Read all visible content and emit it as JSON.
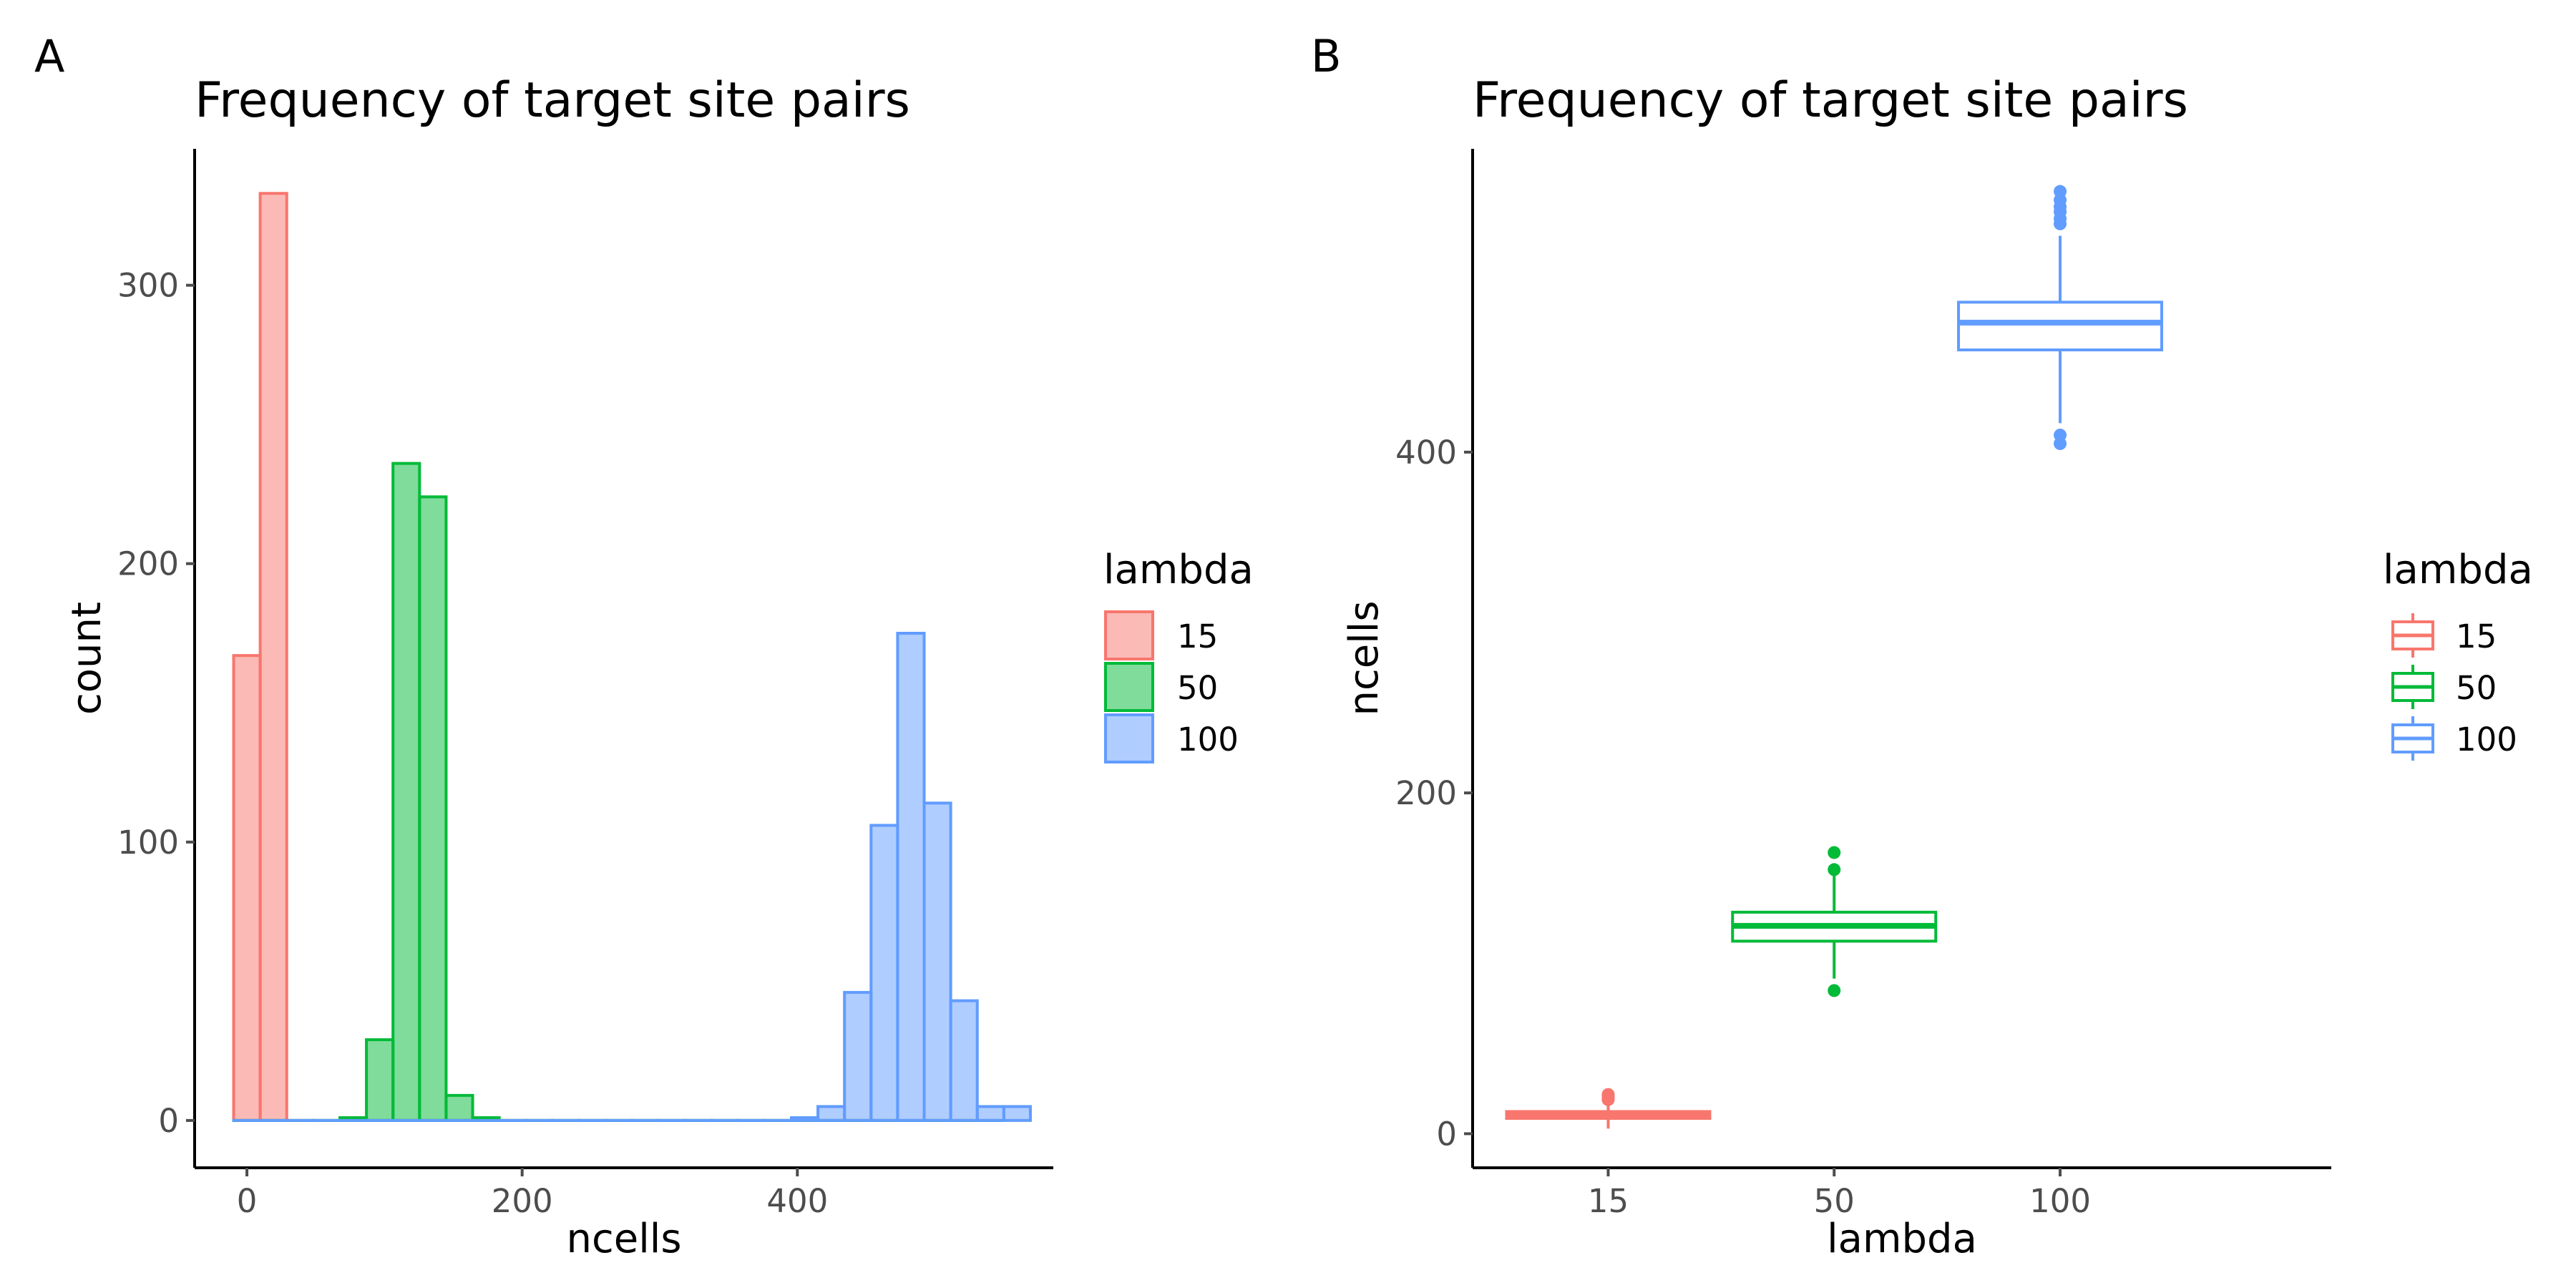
{
  "chart_data": [
    {
      "type": "histogram",
      "panel_tag": "A",
      "title": "Frequency of target site pairs",
      "xlabel": "ncells",
      "ylabel": "count",
      "xlim": [
        -38,
        586
      ],
      "ylim": [
        -17,
        349
      ],
      "xticks": [
        0,
        200,
        400
      ],
      "yticks": [
        0,
        100,
        200,
        300
      ],
      "binwidth": 19.3,
      "legend": {
        "title": "lambda",
        "position": "right",
        "entries": [
          "15",
          "50",
          "100"
        ]
      },
      "series": [
        {
          "name": "15",
          "color": "#F8766D",
          "fill": "#F8766D",
          "bins": [
            {
              "x": 0,
              "count": 167
            },
            {
              "x": 19.3,
              "count": 333
            },
            {
              "x": 38.6,
              "count": 0
            },
            {
              "x": 57.9,
              "count": 0
            },
            {
              "x": 77.2,
              "count": 0
            },
            {
              "x": 96.5,
              "count": 0
            },
            {
              "x": 115.8,
              "count": 0
            },
            {
              "x": 135.1,
              "count": 0
            },
            {
              "x": 154.4,
              "count": 0
            },
            {
              "x": 173.7,
              "count": 0
            },
            {
              "x": 193.0,
              "count": 0
            },
            {
              "x": 212.3,
              "count": 0
            },
            {
              "x": 231.6,
              "count": 0
            },
            {
              "x": 250.9,
              "count": 0
            },
            {
              "x": 270.2,
              "count": 0
            },
            {
              "x": 289.5,
              "count": 0
            },
            {
              "x": 308.8,
              "count": 0
            },
            {
              "x": 328.1,
              "count": 0
            },
            {
              "x": 347.4,
              "count": 0
            },
            {
              "x": 366.7,
              "count": 0
            },
            {
              "x": 386.0,
              "count": 0
            },
            {
              "x": 405.3,
              "count": 0
            },
            {
              "x": 424.6,
              "count": 0
            },
            {
              "x": 443.9,
              "count": 0
            },
            {
              "x": 463.2,
              "count": 0
            },
            {
              "x": 482.5,
              "count": 0
            },
            {
              "x": 501.8,
              "count": 0
            },
            {
              "x": 521.1,
              "count": 0
            },
            {
              "x": 540.4,
              "count": 0
            }
          ]
        },
        {
          "name": "50",
          "color": "#00BA38",
          "fill": "#00BA38",
          "bins": [
            {
              "x": 0,
              "count": 0
            },
            {
              "x": 19.3,
              "count": 0
            },
            {
              "x": 38.6,
              "count": 0
            },
            {
              "x": 57.9,
              "count": 0
            },
            {
              "x": 77.2,
              "count": 1
            },
            {
              "x": 96.5,
              "count": 29
            },
            {
              "x": 115.8,
              "count": 236
            },
            {
              "x": 135.1,
              "count": 224
            },
            {
              "x": 154.4,
              "count": 9
            },
            {
              "x": 173.7,
              "count": 1
            },
            {
              "x": 193.0,
              "count": 0
            },
            {
              "x": 212.3,
              "count": 0
            },
            {
              "x": 231.6,
              "count": 0
            },
            {
              "x": 250.9,
              "count": 0
            },
            {
              "x": 270.2,
              "count": 0
            },
            {
              "x": 289.5,
              "count": 0
            },
            {
              "x": 308.8,
              "count": 0
            },
            {
              "x": 328.1,
              "count": 0
            },
            {
              "x": 347.4,
              "count": 0
            },
            {
              "x": 366.7,
              "count": 0
            },
            {
              "x": 386.0,
              "count": 0
            },
            {
              "x": 405.3,
              "count": 0
            },
            {
              "x": 424.6,
              "count": 0
            },
            {
              "x": 443.9,
              "count": 0
            },
            {
              "x": 463.2,
              "count": 0
            },
            {
              "x": 482.5,
              "count": 0
            },
            {
              "x": 501.8,
              "count": 0
            },
            {
              "x": 521.1,
              "count": 0
            },
            {
              "x": 540.4,
              "count": 0
            }
          ]
        },
        {
          "name": "100",
          "color": "#619CFF",
          "fill": "#619CFF",
          "bins": [
            {
              "x": 0,
              "count": 0
            },
            {
              "x": 19.3,
              "count": 0
            },
            {
              "x": 38.6,
              "count": 0
            },
            {
              "x": 57.9,
              "count": 0
            },
            {
              "x": 77.2,
              "count": 0
            },
            {
              "x": 96.5,
              "count": 0
            },
            {
              "x": 115.8,
              "count": 0
            },
            {
              "x": 135.1,
              "count": 0
            },
            {
              "x": 154.4,
              "count": 0
            },
            {
              "x": 173.7,
              "count": 0
            },
            {
              "x": 193.0,
              "count": 0
            },
            {
              "x": 212.3,
              "count": 0
            },
            {
              "x": 231.6,
              "count": 0
            },
            {
              "x": 250.9,
              "count": 0
            },
            {
              "x": 270.2,
              "count": 0
            },
            {
              "x": 289.5,
              "count": 0
            },
            {
              "x": 308.8,
              "count": 0
            },
            {
              "x": 328.1,
              "count": 0
            },
            {
              "x": 347.4,
              "count": 0
            },
            {
              "x": 366.7,
              "count": 0
            },
            {
              "x": 386.0,
              "count": 0
            },
            {
              "x": 405.3,
              "count": 1
            },
            {
              "x": 424.6,
              "count": 5
            },
            {
              "x": 443.9,
              "count": 46
            },
            {
              "x": 463.2,
              "count": 106
            },
            {
              "x": 482.5,
              "count": 175
            },
            {
              "x": 501.8,
              "count": 114
            },
            {
              "x": 521.1,
              "count": 43
            },
            {
              "x": 540.4,
              "count": 5
            },
            {
              "x": 559.7,
              "count": 5
            }
          ]
        }
      ]
    },
    {
      "type": "box",
      "panel_tag": "B",
      "title": "Frequency of target site pairs",
      "xlabel": "lambda",
      "ylabel": "ncells",
      "categories": [
        "15",
        "50",
        "100"
      ],
      "ylim": [
        -20,
        578
      ],
      "yticks": [
        0,
        200,
        400
      ],
      "legend": {
        "title": "lambda",
        "position": "right",
        "entries": [
          "15",
          "50",
          "100"
        ]
      },
      "series": [
        {
          "name": "15",
          "color": "#F8766D",
          "min": 3,
          "q1": 9,
          "median": 11,
          "q3": 13,
          "max": 18,
          "outliers": [
            20,
            21,
            22,
            23
          ]
        },
        {
          "name": "50",
          "color": "#00BA38",
          "min": 91,
          "q1": 113,
          "median": 122,
          "q3": 130,
          "max": 152,
          "outliers": [
            84,
            155,
            165
          ]
        },
        {
          "name": "100",
          "color": "#619CFF",
          "min": 417,
          "q1": 460,
          "median": 476,
          "q3": 488,
          "max": 527,
          "outliers": [
            405,
            410,
            534,
            537,
            541,
            544,
            548,
            553
          ]
        }
      ]
    }
  ]
}
